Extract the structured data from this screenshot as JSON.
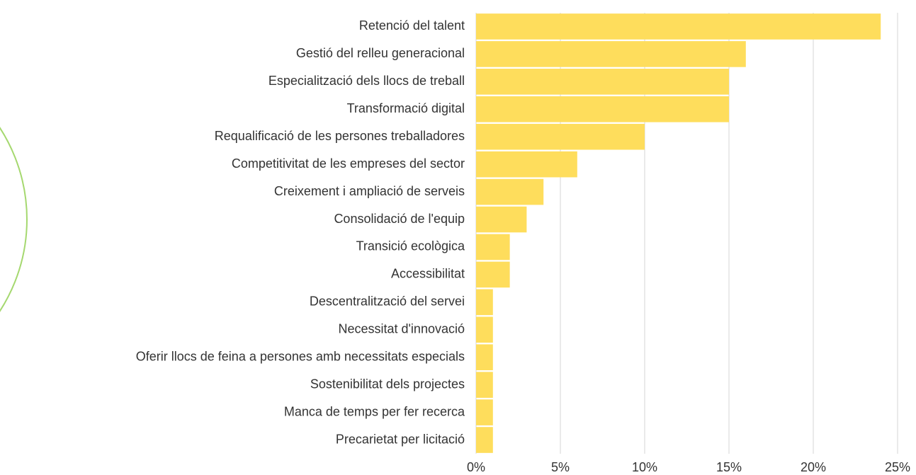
{
  "chart_data": {
    "type": "barh",
    "categories": [
      "Retenció del talent",
      "Gestió del relleu generacional",
      "Especialització dels llocs de treball",
      "Transformació digital",
      "Requalificació de les persones treballadores",
      "Competitivitat de les empreses del sector",
      "Creixement i ampliació de serveis",
      "Consolidació de l'equip",
      "Transició ecològica",
      "Accessibilitat",
      "Descentralització del servei",
      "Necessitat d'innovació",
      "Oferir llocs de feina a persones amb necessitats especials",
      "Sostenibilitat dels projectes",
      "Manca de temps per fer recerca",
      "Precarietat per licitació"
    ],
    "values": [
      24,
      16,
      15,
      15,
      10,
      6,
      4,
      3,
      2,
      2,
      1,
      1,
      1,
      1,
      1,
      1
    ],
    "color": "#fedd5c",
    "xlim": [
      0,
      25
    ],
    "xticks": [
      {
        "value": 0,
        "label": "0%"
      },
      {
        "value": 5,
        "label": "5%"
      },
      {
        "value": 10,
        "label": "10%"
      },
      {
        "value": 15,
        "label": "15%"
      },
      {
        "value": 20,
        "label": "20%"
      },
      {
        "value": 25,
        "label": "25%"
      }
    ],
    "grid": true
  }
}
